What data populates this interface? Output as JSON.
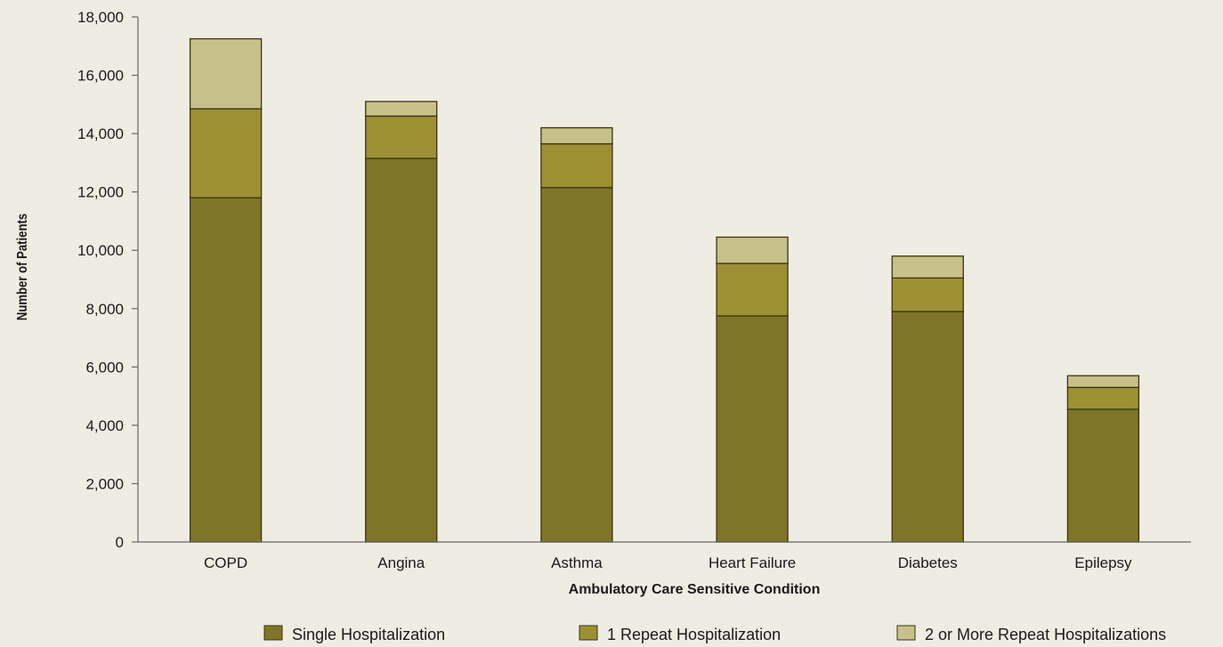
{
  "chart_data": {
    "type": "bar",
    "stacked": true,
    "categories": [
      "COPD",
      "Angina",
      "Asthma",
      "Heart Failure",
      "Diabetes",
      "Epilepsy"
    ],
    "series": [
      {
        "name": "Single Hospitalization",
        "values": [
          11800,
          13150,
          12150,
          7750,
          7900,
          4550
        ],
        "color": "#7f7528"
      },
      {
        "name": "1 Repeat Hospitalization",
        "values": [
          3050,
          1450,
          1500,
          1800,
          1150,
          750
        ],
        "color": "#9c9034"
      },
      {
        "name": "2 or More Repeat Hospitalizations",
        "values": [
          2400,
          500,
          550,
          900,
          750,
          400
        ],
        "color": "#c8c08a"
      }
    ],
    "xlabel": "Ambulatory Care Sensitive Condition",
    "ylabel": "Number of Patients",
    "ylim": [
      0,
      18000
    ],
    "yticks": [
      0,
      2000,
      4000,
      6000,
      8000,
      10000,
      12000,
      14000,
      16000,
      18000
    ],
    "ytick_labels": [
      "0",
      "2,000",
      "4,000",
      "6,000",
      "8,000",
      "10,000",
      "12,000",
      "14,000",
      "16,000",
      "18,000"
    ],
    "grid": false,
    "legend_position": "bottom"
  }
}
